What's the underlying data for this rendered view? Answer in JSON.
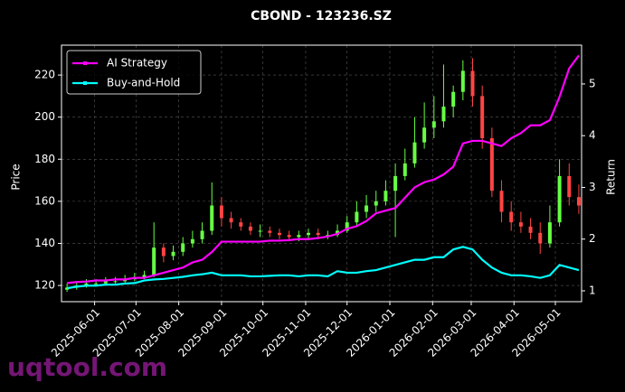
{
  "chart_data": {
    "type": "candlestick",
    "title": "CBOND - 123236.SZ",
    "ylabel": "Price",
    "y2label": "Return",
    "watermark": "uqtool.com",
    "up_color": "#66ff44",
    "down_color": "#ff4444",
    "grid": true,
    "legend": "upper left",
    "x": [
      "2025-05-12",
      "2025-05-19",
      "2025-05-26",
      "2025-06-02",
      "2025-06-09",
      "2025-06-16",
      "2025-06-23",
      "2025-06-30",
      "2025-07-07",
      "2025-07-14",
      "2025-07-21",
      "2025-07-28",
      "2025-08-04",
      "2025-08-11",
      "2025-08-18",
      "2025-08-25",
      "2025-09-01",
      "2025-09-08",
      "2025-09-15",
      "2025-09-22",
      "2025-09-29",
      "2025-10-06",
      "2025-10-13",
      "2025-10-20",
      "2025-10-27",
      "2025-11-03",
      "2025-11-10",
      "2025-11-17",
      "2025-11-24",
      "2025-12-01",
      "2025-12-08",
      "2025-12-15",
      "2025-12-22",
      "2025-12-29",
      "2026-01-05",
      "2026-01-12",
      "2026-01-19",
      "2026-01-26",
      "2026-02-02",
      "2026-02-09",
      "2026-02-16",
      "2026-02-23",
      "2026-03-02",
      "2026-03-09",
      "2026-03-16",
      "2026-03-23",
      "2026-03-30",
      "2026-04-06",
      "2026-04-13",
      "2026-04-20",
      "2026-04-27",
      "2026-05-04",
      "2026-05-11",
      "2026-05-18"
    ],
    "open": [
      118,
      119,
      120,
      121,
      121,
      122,
      122,
      123,
      124,
      125,
      138,
      134,
      136,
      140,
      142,
      146,
      158,
      152,
      150,
      148,
      146,
      146,
      145,
      144,
      143,
      144,
      145,
      144,
      144,
      146,
      150,
      155,
      158,
      160,
      165,
      172,
      178,
      188,
      195,
      198,
      205,
      212,
      222,
      210,
      190,
      165,
      155,
      150,
      148,
      145,
      140,
      150,
      172,
      162
    ],
    "high": [
      121,
      122,
      123,
      123,
      124,
      124,
      125,
      126,
      127,
      150,
      140,
      139,
      143,
      146,
      150,
      169,
      162,
      155,
      152,
      150,
      149,
      148,
      147,
      146,
      146,
      147,
      147,
      146,
      149,
      153,
      160,
      163,
      165,
      170,
      178,
      185,
      200,
      207,
      210,
      225,
      215,
      227,
      228,
      215,
      195,
      170,
      160,
      155,
      152,
      150,
      158,
      180,
      178,
      168
    ],
    "low": [
      117,
      118,
      119,
      120,
      120,
      121,
      121,
      122,
      123,
      124,
      131,
      132,
      134,
      138,
      140,
      144,
      148,
      147,
      146,
      144,
      143,
      143,
      142,
      141,
      141,
      142,
      142,
      142,
      143,
      145,
      148,
      152,
      155,
      158,
      143,
      170,
      176,
      185,
      190,
      195,
      200,
      208,
      205,
      185,
      162,
      150,
      146,
      145,
      142,
      135,
      138,
      148,
      158,
      154
    ],
    "close": [
      119,
      120,
      121,
      121,
      122,
      122,
      123,
      124,
      125,
      138,
      134,
      136,
      140,
      142,
      146,
      158,
      152,
      150,
      148,
      146,
      146,
      145,
      144,
      143,
      144,
      145,
      144,
      144,
      146,
      150,
      155,
      158,
      160,
      165,
      172,
      178,
      188,
      195,
      198,
      205,
      212,
      222,
      210,
      190,
      165,
      155,
      150,
      148,
      145,
      140,
      150,
      172,
      162,
      158
    ],
    "series": [
      {
        "name": "AI Strategy",
        "color": "#ff00ff",
        "axis": "y2",
        "values": [
          1.15,
          1.17,
          1.18,
          1.2,
          1.2,
          1.22,
          1.22,
          1.25,
          1.25,
          1.3,
          1.35,
          1.4,
          1.45,
          1.55,
          1.6,
          1.75,
          1.95,
          1.95,
          1.95,
          1.95,
          1.95,
          1.97,
          1.97,
          1.98,
          2.0,
          2.0,
          2.02,
          2.05,
          2.1,
          2.2,
          2.25,
          2.35,
          2.5,
          2.55,
          2.6,
          2.8,
          3.0,
          3.1,
          3.15,
          3.25,
          3.4,
          3.85,
          3.9,
          3.9,
          3.85,
          3.8,
          3.95,
          4.05,
          4.2,
          4.2,
          4.3,
          4.75,
          5.3,
          5.55
        ]
      },
      {
        "name": "Buy-and-Hold",
        "color": "#00ffff",
        "axis": "y2",
        "values": [
          1.05,
          1.08,
          1.1,
          1.1,
          1.12,
          1.12,
          1.14,
          1.15,
          1.2,
          1.22,
          1.23,
          1.25,
          1.27,
          1.3,
          1.32,
          1.35,
          1.3,
          1.3,
          1.3,
          1.28,
          1.28,
          1.29,
          1.3,
          1.3,
          1.28,
          1.3,
          1.3,
          1.28,
          1.38,
          1.35,
          1.35,
          1.38,
          1.4,
          1.45,
          1.5,
          1.55,
          1.6,
          1.6,
          1.65,
          1.65,
          1.8,
          1.85,
          1.8,
          1.6,
          1.45,
          1.35,
          1.3,
          1.3,
          1.28,
          1.25,
          1.3,
          1.5,
          1.45,
          1.4
        ]
      }
    ],
    "xlim": [
      "2025-05-08",
      "2026-05-20"
    ],
    "xticks": [
      "2025-06-01",
      "2025-07-01",
      "2025-08-01",
      "2025-09-01",
      "2025-10-01",
      "2025-11-01",
      "2025-12-01",
      "2026-01-01",
      "2026-02-01",
      "2026-03-01",
      "2026-04-01",
      "2026-05-01"
    ],
    "ylim": [
      112.3,
      234.2
    ],
    "yticks": [
      120,
      140,
      160,
      180,
      200,
      220
    ],
    "y2lim": [
      0.79,
      5.75
    ],
    "y2ticks": [
      1,
      2,
      3,
      4,
      5
    ]
  }
}
